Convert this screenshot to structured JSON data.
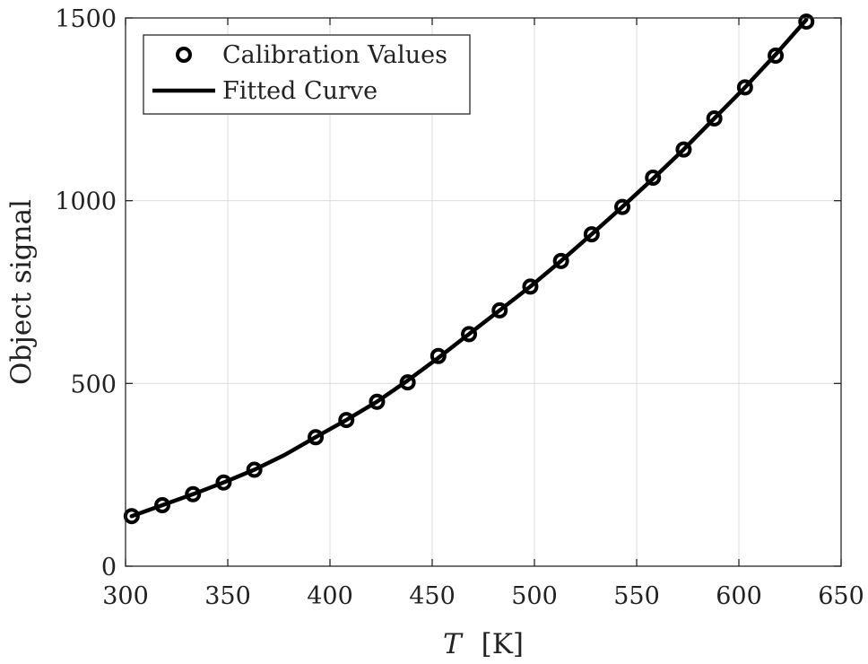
{
  "chart_data": {
    "type": "line",
    "title": "",
    "xlabel_symbol": "T",
    "xlabel_unit": "[K]",
    "ylabel": "Object signal",
    "xlim": [
      300,
      650
    ],
    "ylim": [
      0,
      1500
    ],
    "xticks": [
      300,
      350,
      400,
      450,
      500,
      550,
      600,
      650
    ],
    "yticks": [
      0,
      500,
      1000,
      1500
    ],
    "xtick_labels": [
      "300",
      "350",
      "400",
      "450",
      "500",
      "550",
      "600",
      "650"
    ],
    "ytick_labels": [
      "0",
      "500",
      "1000",
      "1500"
    ],
    "grid": true,
    "legend_position": "top-left",
    "colors": {
      "series": "#000000",
      "grid": "#dcdcdc",
      "axis": "#262626"
    },
    "series": [
      {
        "name": "Calibration Values",
        "kind": "scatter",
        "marker": "circle-open",
        "x": [
          303,
          318,
          333,
          348,
          363,
          393,
          408,
          423,
          438,
          453,
          468,
          483,
          498,
          513,
          528,
          543,
          558,
          573,
          588,
          603,
          618,
          633
        ],
        "y": [
          137,
          167,
          197,
          229,
          264,
          353,
          400,
          450,
          503,
          575,
          635,
          700,
          765,
          835,
          908,
          983,
          1063,
          1140,
          1225,
          1310,
          1397,
          1490
        ]
      },
      {
        "name": "Fitted Curve",
        "kind": "line",
        "x": [
          303,
          318,
          333,
          348,
          363,
          378,
          393,
          408,
          423,
          438,
          453,
          468,
          483,
          498,
          513,
          528,
          543,
          558,
          573,
          588,
          603,
          618,
          633
        ],
        "y": [
          137,
          167,
          197,
          229,
          264,
          305,
          353,
          400,
          450,
          508,
          570,
          635,
          700,
          765,
          835,
          908,
          983,
          1060,
          1140,
          1225,
          1310,
          1400,
          1495
        ]
      }
    ]
  }
}
